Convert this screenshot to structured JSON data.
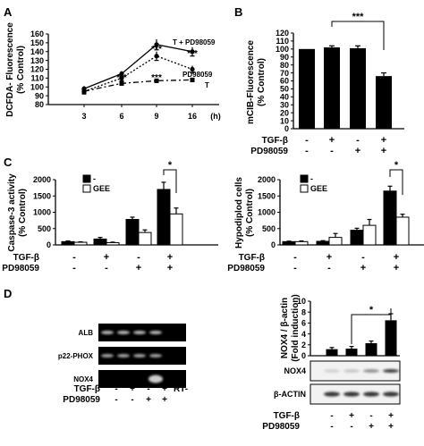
{
  "panel_letters": {
    "a": "A",
    "b": "B",
    "c": "C",
    "d": "D"
  },
  "chart_data": [
    {
      "id": "A",
      "type": "line",
      "ylabel_line1": "DCFDA- Fluorescence",
      "ylabel_line2": "(% Control)",
      "x_unit": "(h)",
      "x": [
        3,
        6,
        9,
        16
      ],
      "ylim": [
        80,
        160
      ],
      "yticks": [
        80,
        90,
        100,
        110,
        120,
        130,
        140,
        150,
        160
      ],
      "series": [
        {
          "name": "T + PD98059",
          "style": "solid",
          "marker": "circle",
          "values": [
            98,
            115,
            148,
            140
          ],
          "err": [
            3,
            3,
            6,
            5
          ]
        },
        {
          "name": "PD98059",
          "style": "dotted",
          "marker": "circle",
          "values": [
            95,
            110,
            135,
            120
          ],
          "err": [
            3,
            3,
            5,
            4
          ]
        },
        {
          "name": "T",
          "style": "dashdot",
          "marker": "square",
          "values": [
            95,
            104,
            107,
            108
          ],
          "err": [
            2,
            2,
            2,
            2
          ]
        }
      ],
      "annotations": [
        "***",
        "***",
        "***",
        "***"
      ]
    },
    {
      "id": "B",
      "type": "bar",
      "ylabel_line1": "mCIB-Fluorescence",
      "ylabel_line2": "(% Control)",
      "ylim": [
        0,
        120
      ],
      "yticks": [
        0,
        10,
        20,
        30,
        40,
        50,
        60,
        70,
        80,
        90,
        100,
        110,
        120
      ],
      "values": [
        100,
        102,
        101,
        66
      ],
      "err": [
        0,
        2,
        3,
        4
      ],
      "treatment_rows": [
        {
          "label": "TGF-β",
          "signs": [
            "-",
            "+",
            "-",
            "+"
          ]
        },
        {
          "label": "PD98059",
          "signs": [
            "-",
            "-",
            "+",
            "+"
          ]
        }
      ],
      "significance": "***"
    },
    {
      "id": "C-left",
      "type": "bar",
      "ylabel_line1": "Caspase-3 activity",
      "ylabel_line2": "(% Control)",
      "ylim": [
        0,
        2000
      ],
      "yticks": [
        0,
        500,
        1000,
        1500,
        2000
      ],
      "series": [
        {
          "name": "-",
          "color": "#000000",
          "values": [
            100,
            180,
            780,
            1700
          ],
          "err": [
            20,
            50,
            70,
            220
          ]
        },
        {
          "name": "GEE",
          "color": "#ffffff",
          "values": [
            80,
            70,
            380,
            950
          ],
          "err": [
            15,
            15,
            80,
            180
          ]
        }
      ],
      "treatment_rows": [
        {
          "label": "TGF-β",
          "signs": [
            "-",
            "+",
            "-",
            "+"
          ]
        },
        {
          "label": "PD98059",
          "signs": [
            "-",
            "-",
            "+",
            "+"
          ]
        }
      ],
      "significance": "*"
    },
    {
      "id": "C-right",
      "type": "bar",
      "ylabel_line1": "Hypodiplod cells",
      "ylabel_line2": "(% Control)",
      "ylim": [
        0,
        2000
      ],
      "yticks": [
        0,
        500,
        1000,
        1500,
        2000
      ],
      "series": [
        {
          "name": "-",
          "color": "#000000",
          "values": [
            100,
            110,
            450,
            1650
          ],
          "err": [
            15,
            20,
            60,
            150
          ]
        },
        {
          "name": "GEE",
          "color": "#ffffff",
          "values": [
            100,
            230,
            600,
            850
          ],
          "err": [
            20,
            120,
            180,
            90
          ]
        }
      ],
      "treatment_rows": [
        {
          "label": "TGF-β",
          "signs": [
            "-",
            "+",
            "-",
            "+"
          ]
        },
        {
          "label": "PD98059",
          "signs": [
            "-",
            "-",
            "+",
            "+"
          ]
        }
      ],
      "significance": "*"
    },
    {
      "id": "D-right",
      "type": "bar",
      "ylabel_line1": "NOX4 / β-actin",
      "ylabel_line2": "(Fold induction)",
      "ylim": [
        0,
        10
      ],
      "yticks": [
        0,
        2,
        4,
        6,
        8,
        10
      ],
      "values": [
        1.2,
        1.3,
        2.3,
        6.5
      ],
      "err": [
        0.3,
        0.4,
        0.4,
        1.2
      ],
      "significance": "*"
    }
  ],
  "gel_left": {
    "rows": [
      "ALB",
      "p22-PHOX",
      "NOX4"
    ],
    "lane_rows": [
      {
        "label": "TGF-β",
        "signs": [
          "-",
          "+",
          "-",
          "+",
          "RT-"
        ]
      },
      {
        "label": "PD98059",
        "signs": [
          "-",
          "-",
          "+",
          "+"
        ]
      }
    ]
  },
  "gel_right": {
    "rows": [
      "NOX4",
      "β-ACTIN"
    ],
    "lane_rows": [
      {
        "label": "TGF-β",
        "signs": [
          "-",
          "+",
          "-",
          "+"
        ]
      },
      {
        "label": "PD98059",
        "signs": [
          "-",
          "-",
          "+",
          "+"
        ]
      }
    ]
  }
}
